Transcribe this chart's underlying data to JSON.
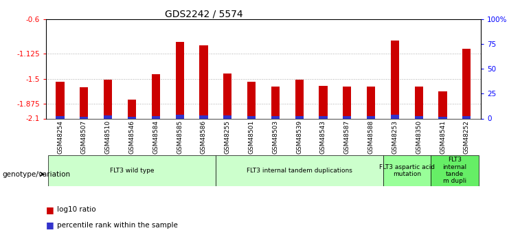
{
  "title": "GDS2242 / 5574",
  "samples": [
    "GSM48254",
    "GSM48507",
    "GSM48510",
    "GSM48546",
    "GSM48584",
    "GSM48585",
    "GSM48586",
    "GSM48255",
    "GSM48501",
    "GSM48503",
    "GSM48539",
    "GSM48543",
    "GSM48587",
    "GSM48588",
    "GSM48253",
    "GSM48350",
    "GSM48541",
    "GSM48252"
  ],
  "log10_ratio": [
    -1.55,
    -1.63,
    -1.52,
    -1.82,
    -1.43,
    -0.95,
    -1.0,
    -1.42,
    -1.55,
    -1.62,
    -1.52,
    -1.61,
    -1.62,
    -1.62,
    -0.92,
    -1.62,
    -1.69,
    -1.05
  ],
  "percentile_rank": [
    3,
    2,
    4,
    2,
    3,
    5,
    4,
    4,
    3,
    3,
    3,
    3,
    3,
    3,
    5,
    3,
    2,
    3
  ],
  "bar_color_red": "#cc0000",
  "bar_color_blue": "#3333cc",
  "ylim_left": [
    -2.1,
    -0.6
  ],
  "ylim_right": [
    0,
    100
  ],
  "yticks_left": [
    -2.1,
    -1.875,
    -1.5,
    -1.125,
    -0.6
  ],
  "yticks_left_labels": [
    "-2.1",
    "-1.875",
    "-1.5",
    "-1.125",
    "-0.6"
  ],
  "yticks_right": [
    0,
    25,
    50,
    75,
    100
  ],
  "yticks_right_labels": [
    "0",
    "25",
    "50",
    "75",
    "100%"
  ],
  "groups": [
    {
      "label": "FLT3 wild type",
      "start": 0,
      "end": 6,
      "color": "#ccffcc"
    },
    {
      "label": "FLT3 internal tandem duplications",
      "start": 7,
      "end": 13,
      "color": "#ccffcc"
    },
    {
      "label": "FLT3 aspartic acid\nmutation",
      "start": 14,
      "end": 15,
      "color": "#99ff99"
    },
    {
      "label": "FLT3\ninternal\ntande\nm dupli",
      "start": 16,
      "end": 17,
      "color": "#66ee66"
    }
  ],
  "legend_label_red": "log10 ratio",
  "legend_label_blue": "percentile rank within the sample",
  "genotype_label": "genotype/variation",
  "bar_width": 0.35,
  "percentile_scale": 0.0105,
  "background_color": "#ffffff",
  "grid_color": "#aaaaaa",
  "label_area_color": "#dddddd"
}
